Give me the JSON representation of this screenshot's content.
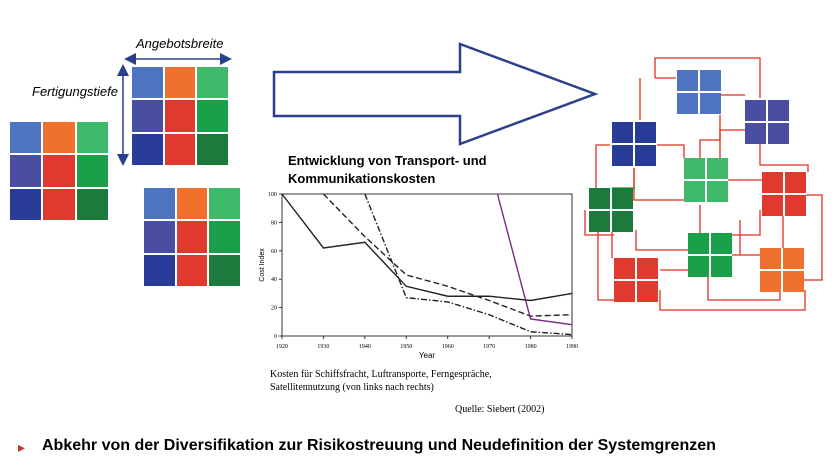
{
  "labels": {
    "angebotsbreite": "Angebotsbreite",
    "fertigungstiefe": "Fertigungstiefe"
  },
  "palette": {
    "blue": "#4f74bf",
    "orange": "#f0702e",
    "green_light": "#3fb96a",
    "indigo": "#4a4ea2",
    "red": "#e03a2e",
    "green": "#1aa04a",
    "navy": "#283c98",
    "green_dark": "#1b7a3c",
    "network_line": "#e0311c",
    "arrow_stroke": "#2b3f8f"
  },
  "chart_data": {
    "type": "line",
    "title": "Entwicklung von Transport- und Kommunikationskosten",
    "xlabel": "Year",
    "ylabel": "Cost Index",
    "xlim": [
      1920,
      1990
    ],
    "ylim": [
      0,
      100
    ],
    "x_ticks": [
      "1920",
      "1930",
      "1940",
      "1950",
      "1960",
      "1970",
      "1980",
      "1990"
    ],
    "y_ticks": [
      "0",
      "20",
      "40",
      "60",
      "80",
      "100"
    ],
    "series": [
      {
        "style": "solid",
        "color": "#222222",
        "points": [
          [
            1920,
            100
          ],
          [
            1930,
            62
          ],
          [
            1940,
            66
          ],
          [
            1950,
            35
          ],
          [
            1960,
            28
          ],
          [
            1970,
            28
          ],
          [
            1980,
            25
          ],
          [
            1990,
            30
          ]
        ]
      },
      {
        "style": "dashed",
        "color": "#222222",
        "points": [
          [
            1930,
            100
          ],
          [
            1940,
            70
          ],
          [
            1950,
            43
          ],
          [
            1960,
            35
          ],
          [
            1970,
            25
          ],
          [
            1980,
            14
          ],
          [
            1990,
            15
          ]
        ]
      },
      {
        "style": "dashdot",
        "color": "#222222",
        "points": [
          [
            1940,
            100
          ],
          [
            1950,
            27
          ],
          [
            1960,
            24
          ],
          [
            1970,
            15
          ],
          [
            1980,
            3
          ],
          [
            1990,
            1
          ]
        ]
      },
      {
        "style": "solid",
        "color": "#7a2a86",
        "points": [
          [
            1972,
            100
          ],
          [
            1980,
            12
          ],
          [
            1990,
            8
          ]
        ]
      }
    ],
    "caption_line1": "Kosten für Schiffsfracht, Luftransporte, Ferngespräche,",
    "caption_line2": "Satellitennutzung (von links nach rechts)",
    "source": "Quelle: Siebert (2002)"
  },
  "bullet": {
    "marker": "▸",
    "text": "Abkehr von der Diversifikation zur Risikostreuung und Neudefinition der Systemgrenzen"
  }
}
